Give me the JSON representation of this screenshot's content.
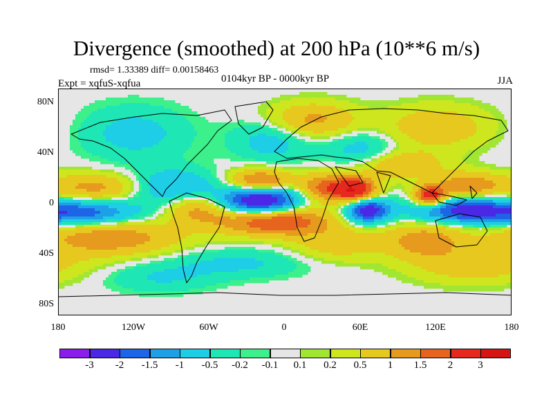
{
  "chart_data": {
    "type": "heatmap",
    "title": "Divergence (smoothed) at 200 hPa (10**6 m/s)",
    "stats": "rmsd= 1.33389 diff= 0.00158463",
    "experiment": "Expt = xqfuS-xqfua",
    "period": "0104kyr BP - 0000kyr BP",
    "season": "JJA",
    "x_ticks": [
      "180",
      "120W",
      "60W",
      "0",
      "60E",
      "120E",
      "180"
    ],
    "y_ticks": [
      "80N",
      "40N",
      "0",
      "40S",
      "80S"
    ],
    "xlim": [
      -180,
      180
    ],
    "ylim": [
      -90,
      90
    ],
    "colorbar": {
      "levels": [
        "-3",
        "-2",
        "-1.5",
        "-1",
        "-0.5",
        "-0.2",
        "-0.1",
        "0.1",
        "0.2",
        "0.5",
        "1",
        "1.5",
        "2",
        "3"
      ],
      "colors": [
        "#8c1eeb",
        "#4b28e6",
        "#1e64e6",
        "#1ea0e6",
        "#1ecde6",
        "#1ee6b4",
        "#3cf08c",
        "#e6e6e6",
        "#a0e632",
        "#cde61e",
        "#e6c81e",
        "#e69b1e",
        "#e6641e",
        "#e6281e",
        "#d71414"
      ]
    },
    "field_features": [
      {
        "lon": -20,
        "lat": 2,
        "value": -3.2,
        "sx": 22,
        "sy": 9
      },
      {
        "lon": 65,
        "lat": -6,
        "value": -2.6,
        "sx": 12,
        "sy": 7
      },
      {
        "lon": 140,
        "lat": -6,
        "value": -2.2,
        "sx": 28,
        "sy": 7
      },
      {
        "lon": -160,
        "lat": -8,
        "value": -1.8,
        "sx": 30,
        "sy": 7
      },
      {
        "lon": -90,
        "lat": 12,
        "value": -1.2,
        "sx": 25,
        "sy": 10
      },
      {
        "lon": -20,
        "lat": 16,
        "value": 2.2,
        "sx": 18,
        "sy": 7
      },
      {
        "lon": 30,
        "lat": 12,
        "value": 1.6,
        "sx": 14,
        "sy": 8
      },
      {
        "lon": 55,
        "lat": 10,
        "value": 2.8,
        "sx": 12,
        "sy": 7
      },
      {
        "lon": 115,
        "lat": 5,
        "value": 2.6,
        "sx": 9,
        "sy": 6
      },
      {
        "lon": 145,
        "lat": 14,
        "value": 1.4,
        "sx": 18,
        "sy": 7
      },
      {
        "lon": -10,
        "lat": -14,
        "value": 2.4,
        "sx": 30,
        "sy": 8
      },
      {
        "lon": -150,
        "lat": 12,
        "value": 1.2,
        "sx": 28,
        "sy": 8
      },
      {
        "lon": -70,
        "lat": -4,
        "value": 1.2,
        "sx": 18,
        "sy": 9
      },
      {
        "lon": -140,
        "lat": -28,
        "value": 1.4,
        "sx": 40,
        "sy": 10
      },
      {
        "lon": 110,
        "lat": -30,
        "value": 1.3,
        "sx": 22,
        "sy": 10
      },
      {
        "lon": 40,
        "lat": -32,
        "value": 0.8,
        "sx": 25,
        "sy": 10
      },
      {
        "lon": -10,
        "lat": 50,
        "value": -0.8,
        "sx": 22,
        "sy": 12
      },
      {
        "lon": 20,
        "lat": 65,
        "value": 1.2,
        "sx": 25,
        "sy": 10
      },
      {
        "lon": -120,
        "lat": 55,
        "value": -0.7,
        "sx": 30,
        "sy": 15
      },
      {
        "lon": 120,
        "lat": 60,
        "value": 0.9,
        "sx": 30,
        "sy": 12
      },
      {
        "lon": 60,
        "lat": 42,
        "value": -0.8,
        "sx": 20,
        "sy": 10
      },
      {
        "lon": -40,
        "lat": -48,
        "value": -0.6,
        "sx": 40,
        "sy": 8
      },
      {
        "lon": 150,
        "lat": -50,
        "value": 0.8,
        "sx": 35,
        "sy": 10
      },
      {
        "lon": -100,
        "lat": -60,
        "value": -0.5,
        "sx": 30,
        "sy": 8
      },
      {
        "lon": 90,
        "lat": 30,
        "value": 1.0,
        "sx": 25,
        "sy": 8
      }
    ]
  }
}
